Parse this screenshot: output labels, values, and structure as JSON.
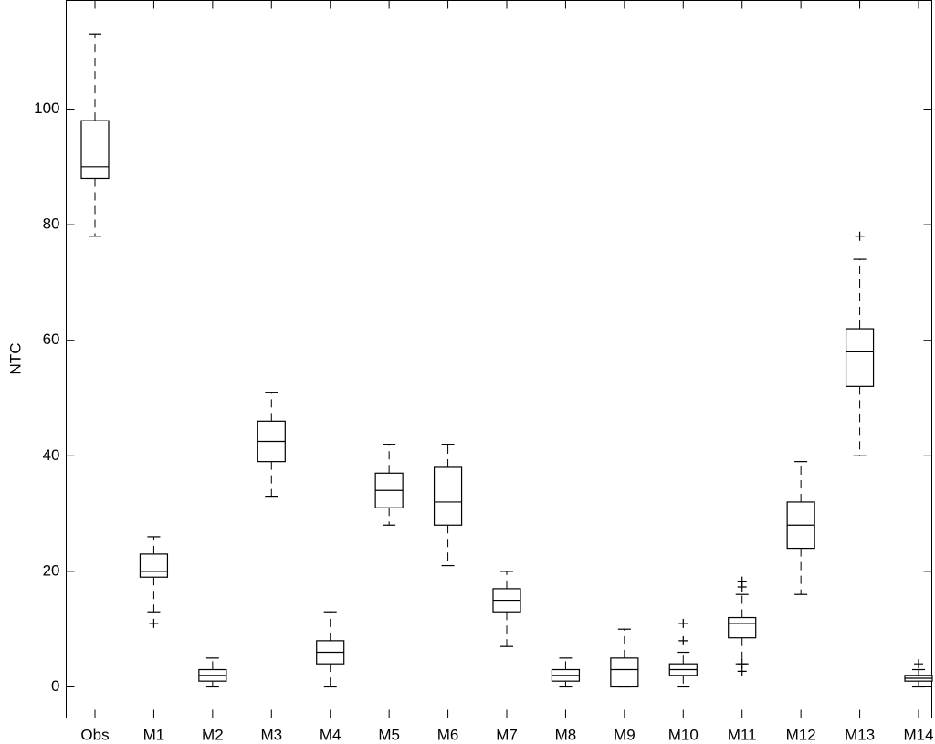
{
  "chart_data": {
    "type": "boxplot",
    "title": "",
    "xlabel": "",
    "ylabel": "NTC",
    "ylim": [
      -6,
      120
    ],
    "yticks": [
      0,
      20,
      40,
      60,
      80,
      100
    ],
    "ytick_labels": [
      "0",
      "20",
      "40",
      "60",
      "80",
      "100"
    ],
    "grid": false,
    "categories": [
      "Obs",
      "M1",
      "M2",
      "M3",
      "M4",
      "M5",
      "M6",
      "M7",
      "M8",
      "M9",
      "M10",
      "M11",
      "M12",
      "M13",
      "M14"
    ],
    "boxes": [
      {
        "label": "Obs",
        "whisker_low": 78,
        "q1": 88,
        "median": 90,
        "q3": 98,
        "whisker_high": 113,
        "outliers": []
      },
      {
        "label": "M1",
        "whisker_low": 13,
        "q1": 19,
        "median": 20,
        "q3": 23,
        "whisker_high": 26,
        "outliers": [
          11
        ]
      },
      {
        "label": "M2",
        "whisker_low": 0,
        "q1": 1,
        "median": 2,
        "q3": 3,
        "whisker_high": 5,
        "outliers": []
      },
      {
        "label": "M3",
        "whisker_low": 33,
        "q1": 39,
        "median": 42.5,
        "q3": 46,
        "whisker_high": 51,
        "outliers": []
      },
      {
        "label": "M4",
        "whisker_low": 0,
        "q1": 4,
        "median": 6,
        "q3": 8,
        "whisker_high": 13,
        "outliers": []
      },
      {
        "label": "M5",
        "whisker_low": 28,
        "q1": 31,
        "median": 34,
        "q3": 37,
        "whisker_high": 42,
        "outliers": []
      },
      {
        "label": "M6",
        "whisker_low": 21,
        "q1": 28,
        "median": 32,
        "q3": 38,
        "whisker_high": 42,
        "outliers": []
      },
      {
        "label": "M7",
        "whisker_low": 7,
        "q1": 13,
        "median": 15,
        "q3": 17,
        "whisker_high": 20,
        "outliers": []
      },
      {
        "label": "M8",
        "whisker_low": 0,
        "q1": 1,
        "median": 2,
        "q3": 3,
        "whisker_high": 5,
        "outliers": []
      },
      {
        "label": "M9",
        "whisker_low": 0,
        "q1": 0,
        "median": 3,
        "q3": 5,
        "whisker_high": 10,
        "outliers": []
      },
      {
        "label": "M10",
        "whisker_low": 0,
        "q1": 2,
        "median": 3,
        "q3": 4,
        "whisker_high": 6,
        "outliers": [
          8,
          11
        ]
      },
      {
        "label": "M11",
        "whisker_low": 4,
        "q1": 8.5,
        "median": 11,
        "q3": 12,
        "whisker_high": 16,
        "outliers": [
          2.7,
          4,
          17.3,
          18.3
        ]
      },
      {
        "label": "M12",
        "whisker_low": 16,
        "q1": 24,
        "median": 28,
        "q3": 32,
        "whisker_high": 39,
        "outliers": []
      },
      {
        "label": "M13",
        "whisker_low": 40,
        "q1": 52,
        "median": 58,
        "q3": 62,
        "whisker_high": 74,
        "outliers": [
          78
        ]
      },
      {
        "label": "M14",
        "whisker_low": 0,
        "q1": 1,
        "median": 1.5,
        "q3": 2,
        "whisker_high": 3,
        "outliers": [
          4
        ]
      }
    ]
  }
}
